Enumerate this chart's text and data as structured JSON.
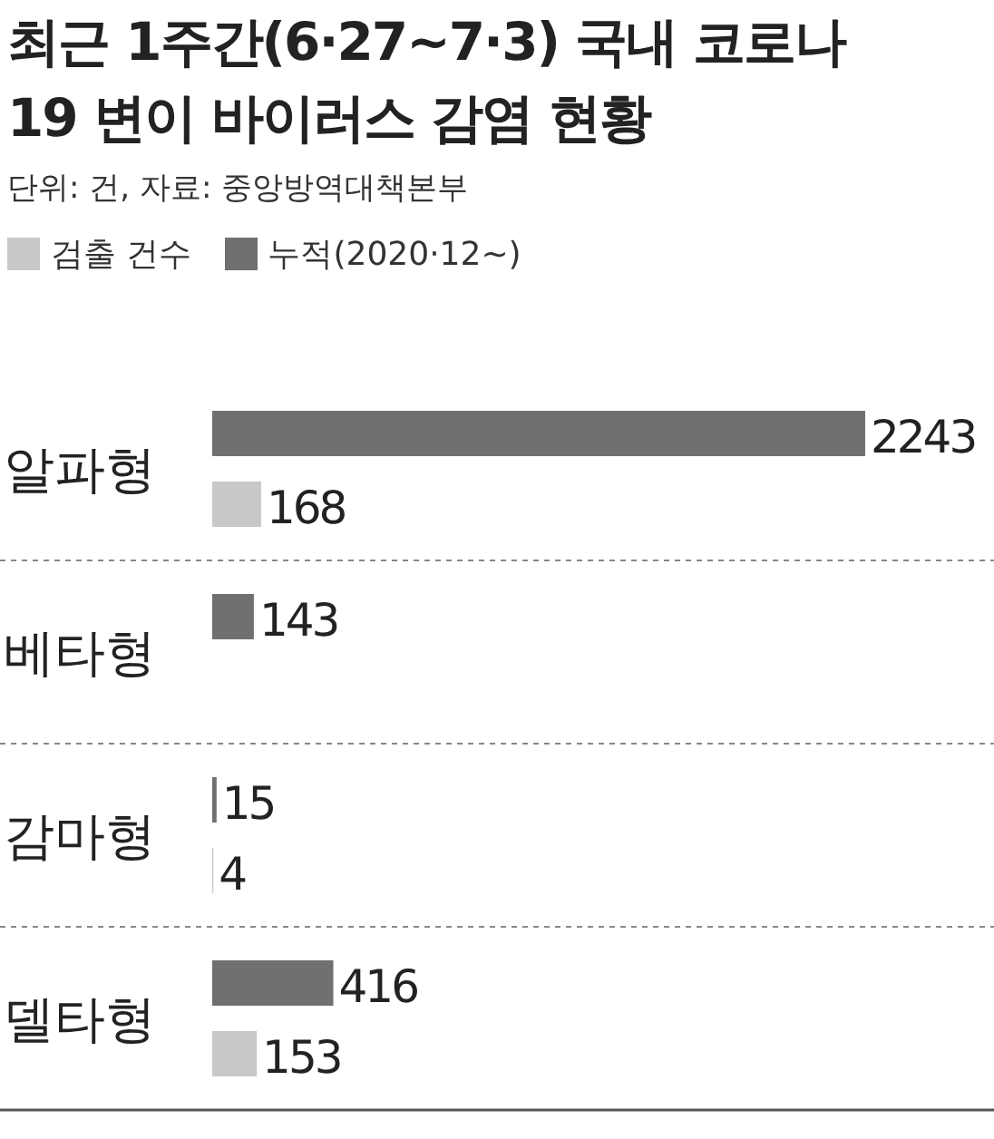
{
  "chart_data": {
    "type": "bar",
    "orientation": "horizontal",
    "title": "최근 1주간(6·27~7·3) 국내 코로나19 변이 바이러스 감염 현황",
    "subtitle": "단위: 건, 자료: 중앙방역대책본부",
    "categories": [
      "알파형",
      "베타형",
      "감마형",
      "델타형"
    ],
    "series": [
      {
        "name": "검출 건수",
        "color": "#c8c8c8",
        "values": [
          168,
          null,
          4,
          153
        ]
      },
      {
        "name": "누적(2020·12~)",
        "color": "#707070",
        "values": [
          2243,
          143,
          15,
          416
        ]
      }
    ],
    "data_labels": true,
    "legend": "top left"
  }
}
